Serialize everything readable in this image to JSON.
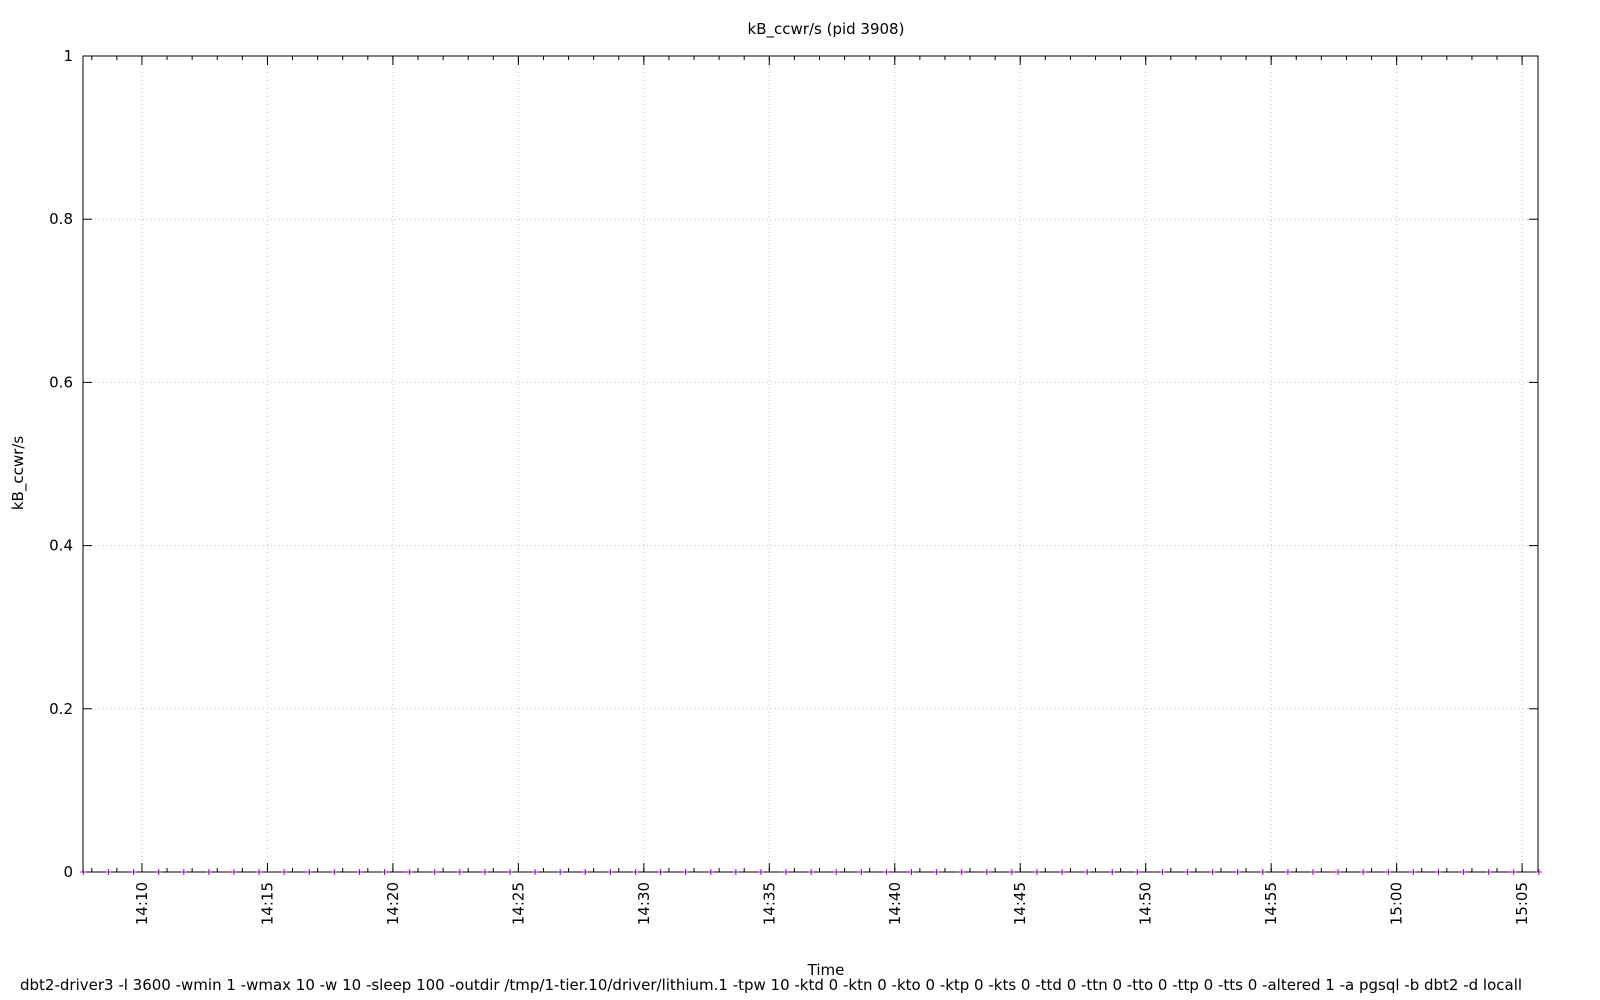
{
  "chart_data": {
    "type": "scatter",
    "title": "kB_ccwr/s (pid 3908)",
    "xlabel": "Time",
    "ylabel": "kB_ccwr/s",
    "caption": "dbt2-driver3 -l 3600 -wmin 1 -wmax 10 -w 10 -sleep 100 -outdir /tmp/1-tier.10/driver/lithium.1 -tpw 10 -ktd 0 -ktn 0 -kto 0 -ktp 0 -kts 0 -ttd 0 -ttn 0 -tto 0 -ttp 0 -tts 0 -altered 1 -a pgsql -b dbt2 -d locall",
    "xlim": [
      "14:07:39",
      "15:05:38"
    ],
    "ylim": [
      0,
      1
    ],
    "grid": true,
    "legend": "none",
    "marker": "plus",
    "color": "#9400d3",
    "xticks": [
      "14:10",
      "14:15",
      "14:20",
      "14:25",
      "14:30",
      "14:35",
      "14:40",
      "14:45",
      "14:50",
      "14:55",
      "15:00",
      "15:05"
    ],
    "yticks": [
      "0",
      "0.2",
      "0.4",
      "0.6",
      "0.8",
      "1"
    ],
    "series": [
      {
        "x_start": "14:07:40",
        "x_step_seconds": 60,
        "count": 59,
        "y_all": 0
      }
    ]
  }
}
